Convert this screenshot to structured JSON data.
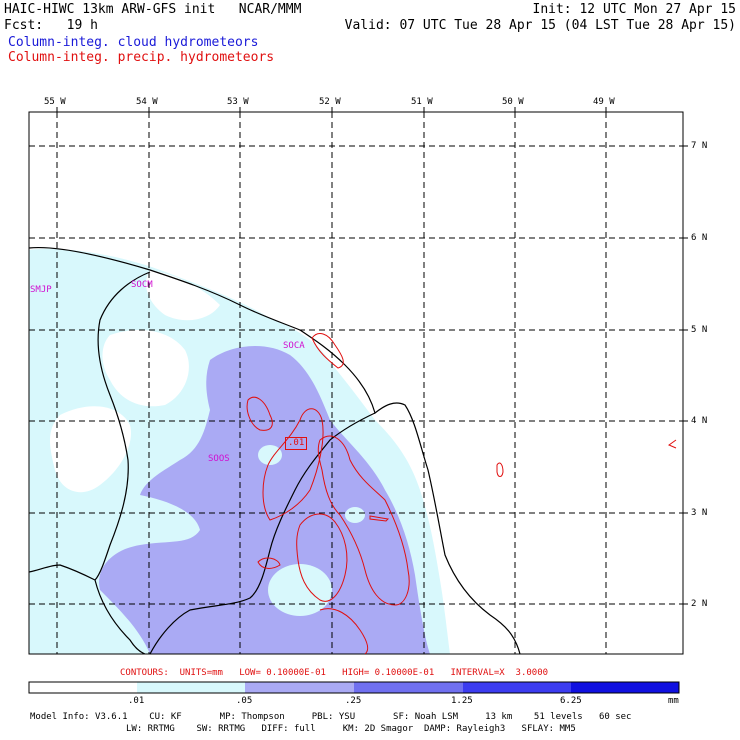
{
  "header": {
    "title": "HAIC-HIWC 13km ARW-GFS init   NCAR/MMM",
    "init": "Init: 12 UTC Mon 27 Apr 15",
    "fcst": "Fcst:   19 h",
    "valid": "Valid: 07 UTC Tue 28 Apr 15 (04 LST Tue 28 Apr 15)",
    "field1": "Column-integ. cloud hydrometeors",
    "field2": "Column-integ. precip. hydrometeors"
  },
  "colors": {
    "cloud_field": "#1a1ad8",
    "precip_field": "#e01010",
    "station_labels": "#d010d0",
    "shade_light": "#d8f8fc",
    "shade_mid": "#aaaaf4",
    "shade_1": "#7070f0",
    "shade_2": "#3c3cf0",
    "shade_3": "#1010e0"
  },
  "map": {
    "lon_labels": [
      "55 W",
      "54 W",
      "53 W",
      "52 W",
      "51 W",
      "50 W",
      "49 W"
    ],
    "lat_labels": [
      "7 N",
      "6 N",
      "5 N",
      "4 N",
      "3 N",
      "2 N"
    ],
    "stations": [
      "SMJP",
      "SOCM",
      "SOCA",
      "SOOS"
    ],
    "precip_contour_label": ".01"
  },
  "contours_text": "CONTOURS:  UNITS=mm   LOW= 0.10000E-01   HIGH= 0.10000E-01   INTERVAL=X  3.0000",
  "colorbar": {
    "ticks": [
      ".01",
      ".05",
      ".25",
      "1.25",
      "6.25"
    ],
    "unit": "mm"
  },
  "model_info": {
    "line1": "Model Info: V3.6.1    CU: KF       MP: Thompson     PBL: YSU       SF: Noah LSM     13 km    51 levels   60 sec",
    "line2": "LW: RRTMG    SW: RRTMG   DIFF: full     KM: 2D Smagor  DAMP: Rayleigh3   SFLAY: MM5"
  }
}
